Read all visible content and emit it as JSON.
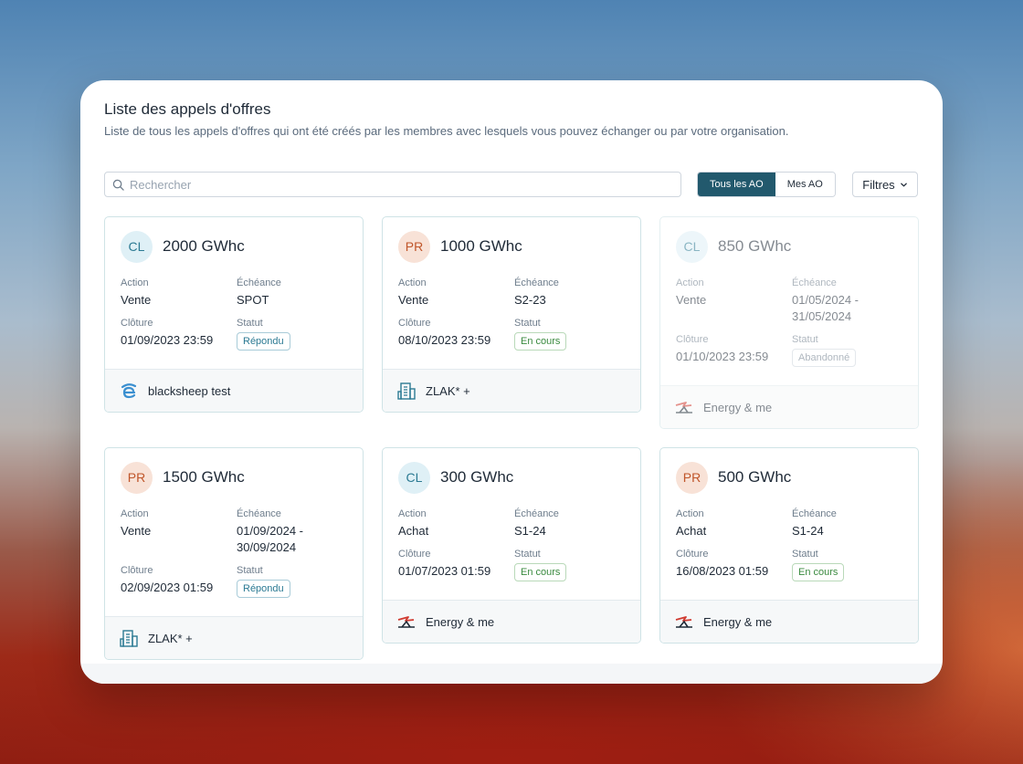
{
  "header": {
    "title": "Liste des appels d'offres",
    "subtitle": "Liste de tous les appels d'offres qui ont été créés par les membres avec lesquels vous pouvez échanger ou par votre organisation."
  },
  "search": {
    "placeholder": "Rechercher",
    "value": ""
  },
  "toggle": {
    "all_label": "Tous les AO",
    "mine_label": "Mes AO",
    "active": "all"
  },
  "filters": {
    "label": "Filtres"
  },
  "labels": {
    "action": "Action",
    "echeance": "Échéance",
    "cloture": "Clôture",
    "statut": "Statut"
  },
  "cards": [
    {
      "initials": "CL",
      "volume": "2000 GWhc",
      "action": "Vente",
      "echeance": "SPOT",
      "cloture": "01/09/2023 23:59",
      "statut": "Répondu",
      "org": "blacksheep test",
      "org_icon": "blacksheep-logo-icon"
    },
    {
      "initials": "PR",
      "volume": "1000 GWhc",
      "action": "Vente",
      "echeance": "S2-23",
      "cloture": "08/10/2023 23:59",
      "statut": "En cours",
      "org": "ZLAK* +",
      "org_icon": "building-icon"
    },
    {
      "initials": "CL",
      "volume": "850 GWhc",
      "action": "Vente",
      "echeance": "01/05/2024 - 31/05/2024",
      "cloture": "01/10/2023 23:59",
      "statut": "Abandonné",
      "org": "Energy & me",
      "org_icon": "energy-and-me-logo-icon"
    },
    {
      "initials": "PR",
      "volume": "1500 GWhc",
      "action": "Vente",
      "echeance": "01/09/2024 - 30/09/2024",
      "cloture": "02/09/2023 01:59",
      "statut": "Répondu",
      "org": "ZLAK* +",
      "org_icon": "building-icon"
    },
    {
      "initials": "CL",
      "volume": "300 GWhc",
      "action": "Achat",
      "echeance": "S1-24",
      "cloture": "01/07/2023 01:59",
      "statut": "En cours",
      "org": "Energy & me",
      "org_icon": "energy-and-me-logo-icon"
    },
    {
      "initials": "PR",
      "volume": "500 GWhc",
      "action": "Achat",
      "echeance": "S1-24",
      "cloture": "16/08/2023 01:59",
      "statut": "En cours",
      "org": "Energy & me",
      "org_icon": "energy-and-me-logo-icon"
    }
  ],
  "colors": {
    "primary": "#22596d",
    "cl_avatar_bg": "#dff0f6",
    "pr_avatar_bg": "#f8e2d7",
    "status_repondu": "#2b7a93",
    "status_en_cours": "#3a8a3f"
  }
}
